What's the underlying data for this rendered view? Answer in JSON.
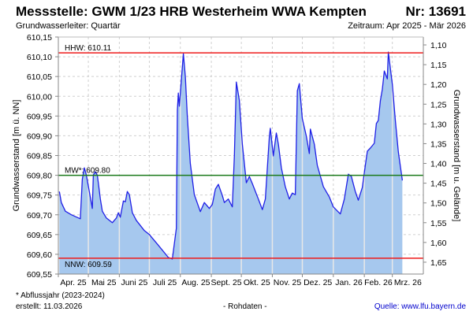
{
  "header": {
    "title": "Messstelle: GWM 1/23 HRB Westerheim WWA Kempten",
    "number": "Nr: 13691",
    "aquifer": "Grundwasserleiter: Quartär",
    "period": "Zeitraum: Apr 2025 - Mär 2026"
  },
  "footer": {
    "note": "* Abflussjahr (2023-2024)",
    "created": "erstellt:  11.03.2026",
    "raw": "- Rohdaten -",
    "source": "Quelle: www.lfu.bayern.de"
  },
  "colors": {
    "line": "#1f1fe6",
    "fill": "#a6c8ee",
    "hhw": "#ee1c1c",
    "mw": "#1a7a1a",
    "nnw": "#ee1c1c"
  },
  "chart_data": {
    "type": "area",
    "ylabel": "Grundwasserstand [m ü. NN]",
    "ylabel_right": "Grundwasserstand [m u. Gelände]",
    "ylim": [
      609.55,
      610.15
    ],
    "yticks": [
      "610,15",
      "610,10",
      "610,05",
      "610,00",
      "609,95",
      "609,90",
      "609,85",
      "609,80",
      "609,75",
      "609,70",
      "609,65",
      "609,60",
      "609,55"
    ],
    "ground_level": 611.23,
    "yticks_right": [
      "1,10",
      "1,15",
      "1,20",
      "1,25",
      "1,30",
      "1,35",
      "1,40",
      "1,45",
      "1,50",
      "1,55",
      "1,60",
      "1,65"
    ],
    "months": [
      "Apr. 25",
      "Mai 25",
      "Juni 25",
      "Juli 25",
      "Aug. 25",
      "Sept. 25",
      "Okt. 25",
      "Nov. 25",
      "Dez. 25",
      "Jan. 26",
      "Feb. 26",
      "Mrz. 26"
    ],
    "month_days": [
      30,
      31,
      30,
      31,
      31,
      30,
      31,
      30,
      31,
      31,
      28,
      31
    ],
    "grid": true,
    "reference_lines": [
      {
        "label": "HHW: 610.11",
        "value": 610.11,
        "color": "#ee1c1c"
      },
      {
        "label": "MW*: 609.80",
        "value": 609.8,
        "color": "#1a7a1a"
      },
      {
        "label": "NNW: 609.59",
        "value": 609.59,
        "color": "#ee1c1c"
      }
    ],
    "series": [
      {
        "name": "Grundwasserstand",
        "x_unit": "days since 01.04.2025",
        "points": [
          [
            1,
            609.759
          ],
          [
            3,
            609.731
          ],
          [
            7,
            609.709
          ],
          [
            13,
            609.7
          ],
          [
            22,
            609.69
          ],
          [
            24,
            609.79
          ],
          [
            26,
            609.819
          ],
          [
            28,
            609.801
          ],
          [
            31,
            609.759
          ],
          [
            34,
            609.716
          ],
          [
            35,
            609.801
          ],
          [
            37,
            609.809
          ],
          [
            39,
            609.8
          ],
          [
            42,
            609.74
          ],
          [
            44,
            609.709
          ],
          [
            48,
            609.692
          ],
          [
            54,
            609.68
          ],
          [
            58,
            609.692
          ],
          [
            60,
            609.705
          ],
          [
            62,
            609.694
          ],
          [
            65,
            609.735
          ],
          [
            67,
            609.733
          ],
          [
            69,
            609.759
          ],
          [
            71,
            609.751
          ],
          [
            74,
            609.705
          ],
          [
            78,
            609.686
          ],
          [
            86,
            609.66
          ],
          [
            91,
            609.65
          ],
          [
            99,
            609.626
          ],
          [
            110,
            609.592
          ],
          [
            114,
            609.588
          ],
          [
            118,
            609.666
          ],
          [
            119,
            609.965
          ],
          [
            120,
            610.008
          ],
          [
            121,
            609.975
          ],
          [
            125,
            610.108
          ],
          [
            127,
            610.05
          ],
          [
            129,
            609.95
          ],
          [
            132,
            609.83
          ],
          [
            136,
            609.751
          ],
          [
            142,
            609.708
          ],
          [
            146,
            609.731
          ],
          [
            151,
            609.716
          ],
          [
            154,
            609.726
          ],
          [
            157,
            609.765
          ],
          [
            160,
            609.777
          ],
          [
            164,
            609.749
          ],
          [
            166,
            609.731
          ],
          [
            170,
            609.74
          ],
          [
            174,
            609.72
          ],
          [
            176,
            609.85
          ],
          [
            178,
            610.036
          ],
          [
            181,
            609.99
          ],
          [
            184,
            609.879
          ],
          [
            188,
            609.781
          ],
          [
            191,
            609.797
          ],
          [
            194,
            609.779
          ],
          [
            200,
            609.74
          ],
          [
            204,
            609.713
          ],
          [
            207,
            609.74
          ],
          [
            211,
            609.899
          ],
          [
            212,
            609.919
          ],
          [
            215,
            609.849
          ],
          [
            218,
            609.907
          ],
          [
            220,
            609.879
          ],
          [
            223,
            609.819
          ],
          [
            227,
            609.771
          ],
          [
            231,
            609.74
          ],
          [
            234,
            609.755
          ],
          [
            237,
            609.751
          ],
          [
            239,
            610.014
          ],
          [
            241,
            610.032
          ],
          [
            244,
            609.943
          ],
          [
            248,
            609.899
          ],
          [
            251,
            609.855
          ],
          [
            252,
            609.917
          ],
          [
            256,
            609.879
          ],
          [
            259,
            609.825
          ],
          [
            265,
            609.771
          ],
          [
            271,
            609.745
          ],
          [
            275,
            609.72
          ],
          [
            282,
            609.702
          ],
          [
            286,
            609.74
          ],
          [
            290,
            609.803
          ],
          [
            293,
            609.797
          ],
          [
            297,
            609.759
          ],
          [
            300,
            609.737
          ],
          [
            304,
            609.769
          ],
          [
            307,
            609.825
          ],
          [
            309,
            609.861
          ],
          [
            312,
            609.869
          ],
          [
            316,
            609.881
          ],
          [
            318,
            609.931
          ],
          [
            320,
            609.939
          ],
          [
            322,
            609.989
          ],
          [
            324,
            610.018
          ],
          [
            326,
            610.064
          ],
          [
            329,
            610.044
          ],
          [
            330,
            610.112
          ],
          [
            334,
            610.03
          ],
          [
            337,
            609.939
          ],
          [
            340,
            609.859
          ],
          [
            344,
            609.787
          ]
        ]
      }
    ]
  }
}
